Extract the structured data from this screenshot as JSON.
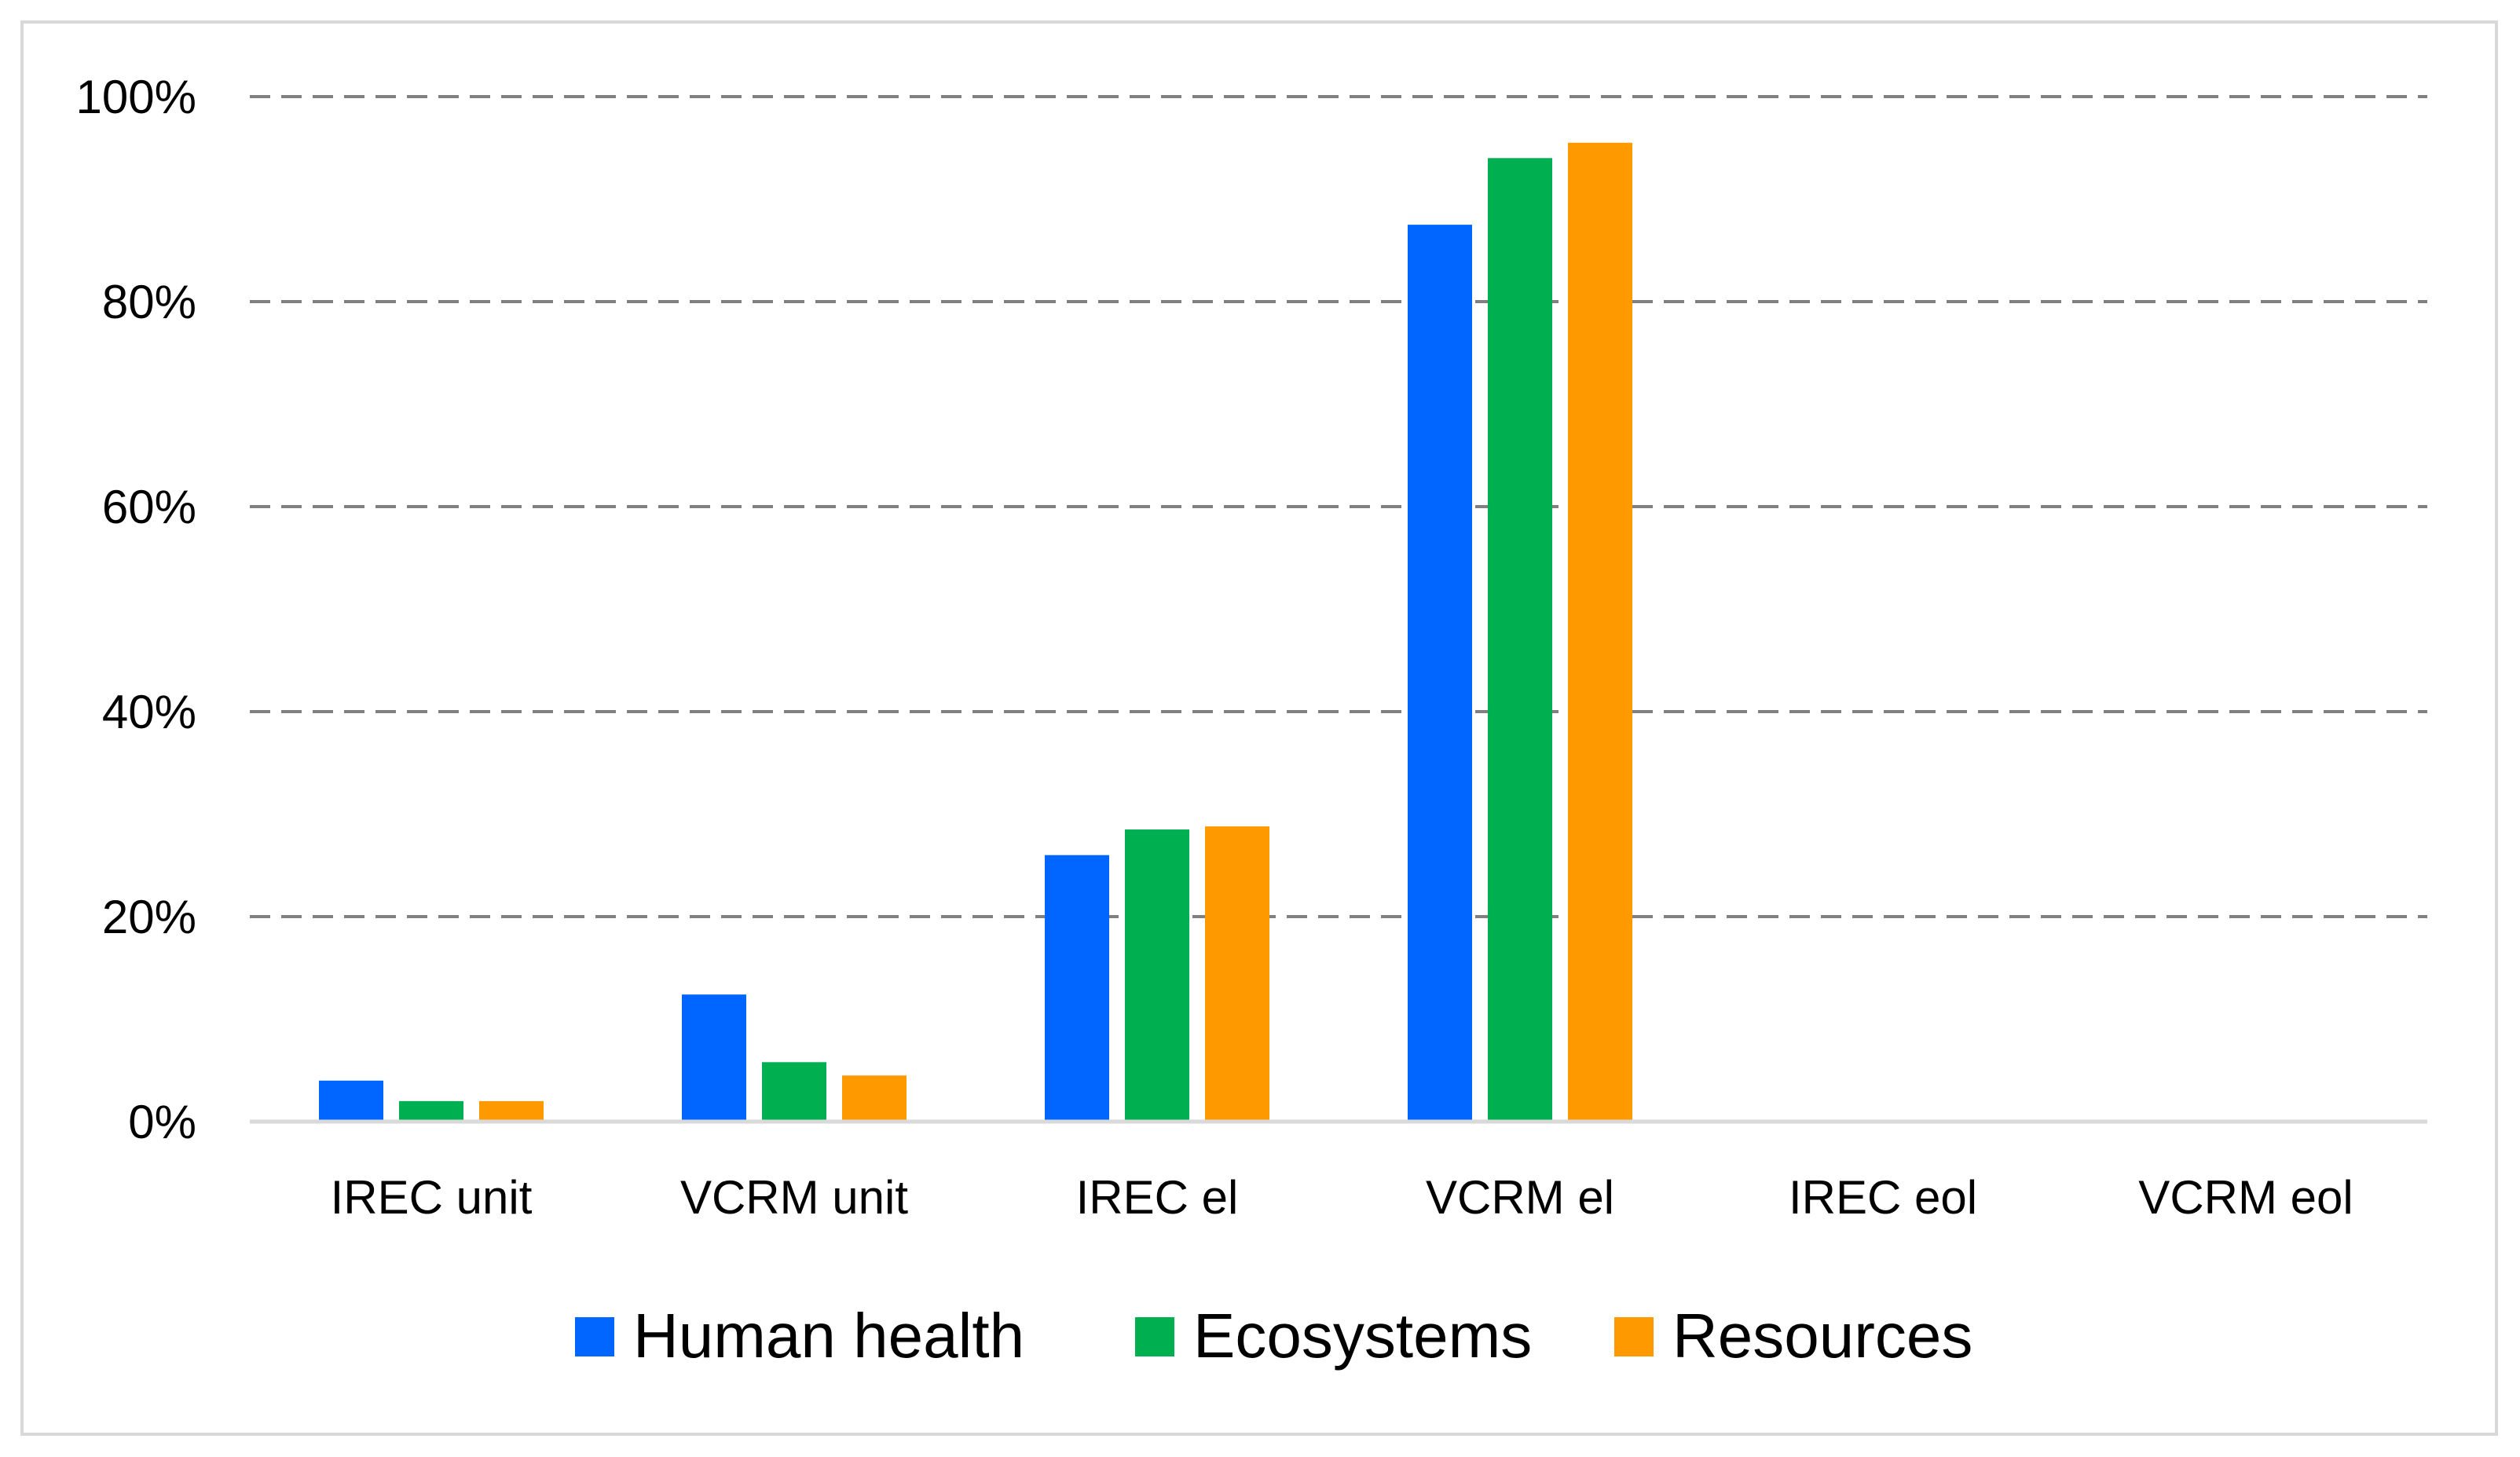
{
  "chart_data": {
    "type": "bar",
    "title": "",
    "xlabel": "",
    "ylabel": "",
    "categories": [
      "IREC unit",
      "VCRM unit",
      "IREC el",
      "VCRM el",
      "IREC eol",
      "VCRM eol"
    ],
    "series": [
      {
        "name": "Human health",
        "color": "#0066ff",
        "values": [
          4,
          12.4,
          26,
          87.5,
          0,
          0
        ]
      },
      {
        "name": "Ecosystems",
        "color": "#00b050",
        "values": [
          2,
          5.8,
          28.5,
          94,
          0,
          0
        ]
      },
      {
        "name": "Resources",
        "color": "#ff9900",
        "values": [
          2,
          4.5,
          28.8,
          95.5,
          0,
          0
        ]
      }
    ],
    "ylim": [
      0,
      100
    ],
    "yticks": [
      0,
      20,
      40,
      60,
      80,
      100
    ],
    "ytick_labels": [
      "0%",
      "20%",
      "40%",
      "60%",
      "80%",
      "100%"
    ],
    "grid": "dashed horizontal",
    "legend_position": "bottom"
  }
}
